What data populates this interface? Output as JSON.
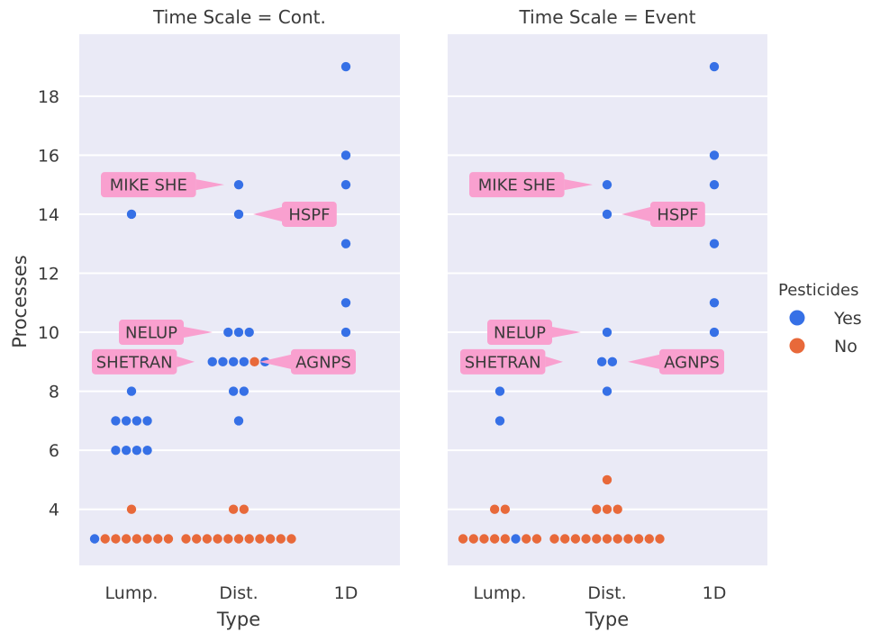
{
  "chart_data": {
    "type": "scatter",
    "subtype": "swarm",
    "colors": {
      "Yes": "#3670e6",
      "No": "#e8693a",
      "background": "#eaeaf6",
      "grid": "#ffffff",
      "annotation": "#f9a0cf"
    },
    "ylabel": "Processes",
    "xlabel": "Type",
    "categories": [
      "Lump.",
      "Dist.",
      "1D"
    ],
    "yticks": [
      4,
      6,
      8,
      10,
      12,
      14,
      16,
      18
    ],
    "ylim": [
      2.1,
      20.1
    ],
    "grid": true,
    "legend": {
      "title": "Pesticides",
      "entries": [
        "Yes",
        "No"
      ],
      "placement": "right"
    },
    "panels": [
      {
        "title": "Time Scale = Cont.",
        "points": [
          {
            "type": "Lump.",
            "y": 14,
            "pesticides": "Yes"
          },
          {
            "type": "Lump.",
            "y": 8,
            "pesticides": "Yes"
          },
          {
            "type": "Lump.",
            "y": 7,
            "pesticides": "Yes"
          },
          {
            "type": "Lump.",
            "y": 7,
            "pesticides": "Yes"
          },
          {
            "type": "Lump.",
            "y": 7,
            "pesticides": "Yes"
          },
          {
            "type": "Lump.",
            "y": 7,
            "pesticides": "Yes"
          },
          {
            "type": "Lump.",
            "y": 6,
            "pesticides": "Yes"
          },
          {
            "type": "Lump.",
            "y": 6,
            "pesticides": "Yes"
          },
          {
            "type": "Lump.",
            "y": 6,
            "pesticides": "Yes"
          },
          {
            "type": "Lump.",
            "y": 6,
            "pesticides": "Yes"
          },
          {
            "type": "Lump.",
            "y": 4,
            "pesticides": "No"
          },
          {
            "type": "Lump.",
            "y": 3,
            "pesticides": "Yes"
          },
          {
            "type": "Lump.",
            "y": 3,
            "pesticides": "No"
          },
          {
            "type": "Lump.",
            "y": 3,
            "pesticides": "No"
          },
          {
            "type": "Lump.",
            "y": 3,
            "pesticides": "No"
          },
          {
            "type": "Lump.",
            "y": 3,
            "pesticides": "No"
          },
          {
            "type": "Lump.",
            "y": 3,
            "pesticides": "No"
          },
          {
            "type": "Lump.",
            "y": 3,
            "pesticides": "No"
          },
          {
            "type": "Lump.",
            "y": 3,
            "pesticides": "No"
          },
          {
            "type": "Dist.",
            "y": 15,
            "pesticides": "Yes"
          },
          {
            "type": "Dist.",
            "y": 14,
            "pesticides": "Yes"
          },
          {
            "type": "Dist.",
            "y": 10,
            "pesticides": "Yes"
          },
          {
            "type": "Dist.",
            "y": 10,
            "pesticides": "Yes"
          },
          {
            "type": "Dist.",
            "y": 10,
            "pesticides": "Yes"
          },
          {
            "type": "Dist.",
            "y": 9,
            "pesticides": "Yes"
          },
          {
            "type": "Dist.",
            "y": 9,
            "pesticides": "Yes"
          },
          {
            "type": "Dist.",
            "y": 9,
            "pesticides": "Yes"
          },
          {
            "type": "Dist.",
            "y": 9,
            "pesticides": "Yes"
          },
          {
            "type": "Dist.",
            "y": 9,
            "pesticides": "No"
          },
          {
            "type": "Dist.",
            "y": 9,
            "pesticides": "Yes"
          },
          {
            "type": "Dist.",
            "y": 8,
            "pesticides": "Yes"
          },
          {
            "type": "Dist.",
            "y": 8,
            "pesticides": "Yes"
          },
          {
            "type": "Dist.",
            "y": 7,
            "pesticides": "Yes"
          },
          {
            "type": "Dist.",
            "y": 4,
            "pesticides": "No"
          },
          {
            "type": "Dist.",
            "y": 4,
            "pesticides": "No"
          },
          {
            "type": "Dist.",
            "y": 3,
            "pesticides": "No"
          },
          {
            "type": "Dist.",
            "y": 3,
            "pesticides": "No"
          },
          {
            "type": "Dist.",
            "y": 3,
            "pesticides": "No"
          },
          {
            "type": "Dist.",
            "y": 3,
            "pesticides": "No"
          },
          {
            "type": "Dist.",
            "y": 3,
            "pesticides": "No"
          },
          {
            "type": "Dist.",
            "y": 3,
            "pesticides": "No"
          },
          {
            "type": "Dist.",
            "y": 3,
            "pesticides": "No"
          },
          {
            "type": "Dist.",
            "y": 3,
            "pesticides": "No"
          },
          {
            "type": "Dist.",
            "y": 3,
            "pesticides": "No"
          },
          {
            "type": "Dist.",
            "y": 3,
            "pesticides": "No"
          },
          {
            "type": "Dist.",
            "y": 3,
            "pesticides": "No"
          },
          {
            "type": "1D",
            "y": 19,
            "pesticides": "Yes"
          },
          {
            "type": "1D",
            "y": 16,
            "pesticides": "Yes"
          },
          {
            "type": "1D",
            "y": 15,
            "pesticides": "Yes"
          },
          {
            "type": "1D",
            "y": 13,
            "pesticides": "Yes"
          },
          {
            "type": "1D",
            "y": 11,
            "pesticides": "Yes"
          },
          {
            "type": "1D",
            "y": 10,
            "pesticides": "Yes"
          }
        ],
        "annotations": [
          {
            "text": "MIKE SHE",
            "type": "Lump.",
            "y": 15,
            "side": "left"
          },
          {
            "text": "HSPF",
            "type": "Dist.",
            "y": 14,
            "side": "right"
          },
          {
            "text": "NELUP",
            "type": "Lump.",
            "y": 10,
            "side": "left"
          },
          {
            "text": "SHETRAN",
            "type": "Lump.",
            "y": 9,
            "side": "left"
          },
          {
            "text": "AGNPS",
            "type": "Dist.",
            "y": 9,
            "side": "right"
          }
        ]
      },
      {
        "title": "Time Scale = Event",
        "points": [
          {
            "type": "Lump.",
            "y": 8,
            "pesticides": "Yes"
          },
          {
            "type": "Lump.",
            "y": 7,
            "pesticides": "Yes"
          },
          {
            "type": "Lump.",
            "y": 4,
            "pesticides": "No"
          },
          {
            "type": "Lump.",
            "y": 4,
            "pesticides": "No"
          },
          {
            "type": "Lump.",
            "y": 3,
            "pesticides": "No"
          },
          {
            "type": "Lump.",
            "y": 3,
            "pesticides": "No"
          },
          {
            "type": "Lump.",
            "y": 3,
            "pesticides": "No"
          },
          {
            "type": "Lump.",
            "y": 3,
            "pesticides": "No"
          },
          {
            "type": "Lump.",
            "y": 3,
            "pesticides": "No"
          },
          {
            "type": "Lump.",
            "y": 3,
            "pesticides": "Yes"
          },
          {
            "type": "Lump.",
            "y": 3,
            "pesticides": "No"
          },
          {
            "type": "Lump.",
            "y": 3,
            "pesticides": "No"
          },
          {
            "type": "Dist.",
            "y": 15,
            "pesticides": "Yes"
          },
          {
            "type": "Dist.",
            "y": 14,
            "pesticides": "Yes"
          },
          {
            "type": "Dist.",
            "y": 10,
            "pesticides": "Yes"
          },
          {
            "type": "Dist.",
            "y": 9,
            "pesticides": "Yes"
          },
          {
            "type": "Dist.",
            "y": 9,
            "pesticides": "Yes"
          },
          {
            "type": "Dist.",
            "y": 8,
            "pesticides": "Yes"
          },
          {
            "type": "Dist.",
            "y": 5,
            "pesticides": "No"
          },
          {
            "type": "Dist.",
            "y": 4,
            "pesticides": "No"
          },
          {
            "type": "Dist.",
            "y": 4,
            "pesticides": "No"
          },
          {
            "type": "Dist.",
            "y": 4,
            "pesticides": "No"
          },
          {
            "type": "Dist.",
            "y": 3,
            "pesticides": "No"
          },
          {
            "type": "Dist.",
            "y": 3,
            "pesticides": "No"
          },
          {
            "type": "Dist.",
            "y": 3,
            "pesticides": "No"
          },
          {
            "type": "Dist.",
            "y": 3,
            "pesticides": "No"
          },
          {
            "type": "Dist.",
            "y": 3,
            "pesticides": "No"
          },
          {
            "type": "Dist.",
            "y": 3,
            "pesticides": "No"
          },
          {
            "type": "Dist.",
            "y": 3,
            "pesticides": "No"
          },
          {
            "type": "Dist.",
            "y": 3,
            "pesticides": "No"
          },
          {
            "type": "Dist.",
            "y": 3,
            "pesticides": "No"
          },
          {
            "type": "Dist.",
            "y": 3,
            "pesticides": "No"
          },
          {
            "type": "Dist.",
            "y": 3,
            "pesticides": "No"
          },
          {
            "type": "1D",
            "y": 19,
            "pesticides": "Yes"
          },
          {
            "type": "1D",
            "y": 16,
            "pesticides": "Yes"
          },
          {
            "type": "1D",
            "y": 15,
            "pesticides": "Yes"
          },
          {
            "type": "1D",
            "y": 13,
            "pesticides": "Yes"
          },
          {
            "type": "1D",
            "y": 11,
            "pesticides": "Yes"
          },
          {
            "type": "1D",
            "y": 10,
            "pesticides": "Yes"
          }
        ],
        "annotations": [
          {
            "text": "MIKE SHE",
            "type": "Lump.",
            "y": 15,
            "side": "left"
          },
          {
            "text": "HSPF",
            "type": "Dist.",
            "y": 14,
            "side": "right"
          },
          {
            "text": "NELUP",
            "type": "Lump.",
            "y": 10,
            "side": "left"
          },
          {
            "text": "SHETRAN",
            "type": "Lump.",
            "y": 9,
            "side": "left"
          },
          {
            "text": "AGNPS",
            "type": "Dist.",
            "y": 9,
            "side": "right"
          }
        ]
      }
    ]
  }
}
